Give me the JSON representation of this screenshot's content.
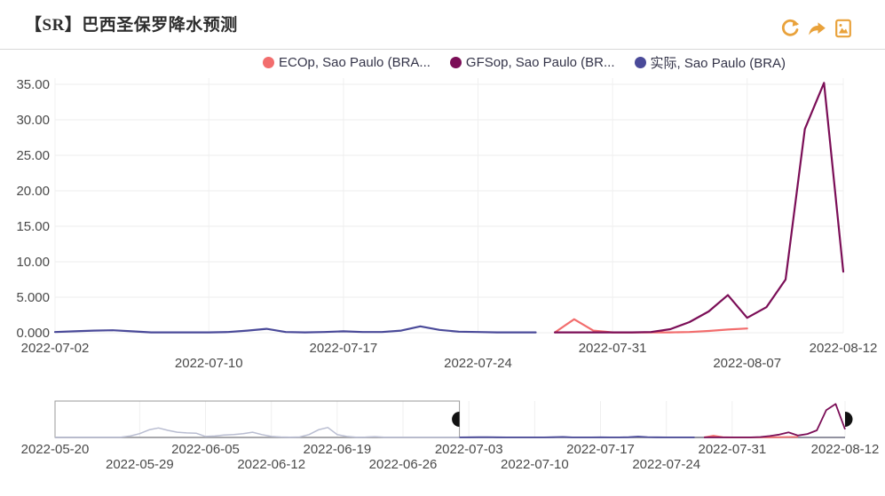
{
  "header": {
    "title": "【SR】巴西圣保罗降水预测",
    "actions": {
      "refresh_label": "refresh",
      "share_label": "share",
      "export_image_label": "export-image"
    },
    "accent_color": "#E9A23B"
  },
  "chart_data": {
    "type": "line",
    "title": "【SR】巴西圣保罗降水预测",
    "ylabel": "",
    "xlabel": "",
    "ylim": [
      0,
      35
    ],
    "y_tick_step": 5,
    "y_ticks": [
      "35.00",
      "30.00",
      "25.00",
      "20.00",
      "15.00",
      "10.00",
      "5.000",
      "0.000"
    ],
    "x_range": [
      "2022-07-02",
      "2022-08-12"
    ],
    "x_ticks": [
      "2022-07-02",
      "2022-07-10",
      "2022-07-17",
      "2022-07-24",
      "2022-07-31",
      "2022-08-07",
      "2022-08-12"
    ],
    "grid": true,
    "legend_position": "top",
    "series": [
      {
        "name": "ECOp, Sao Paulo (BRA...",
        "color": "#F26D6D",
        "start": "2022-07-28",
        "values": [
          0.05,
          1.9,
          0.3,
          0.05,
          0.05,
          0.05,
          0.05,
          0.1,
          0.25,
          0.45,
          0.6
        ]
      },
      {
        "name": "GFSop, Sao Paulo (BR...",
        "color": "#7B0E57",
        "start": "2022-07-28",
        "values": [
          0.05,
          0.05,
          0.05,
          0.05,
          0.05,
          0.1,
          0.5,
          1.5,
          3,
          5.3,
          2.1,
          3.6,
          7.5,
          28.7,
          35.2,
          8.6
        ]
      },
      {
        "name": "实际, Sao Paulo (BRA)",
        "color": "#4A4A99",
        "start": "2022-05-20",
        "values": [
          0.1,
          0.1,
          0.1,
          0.2,
          0.2,
          0.2,
          0.2,
          0.3,
          1.5,
          4,
          8,
          10,
          7.5,
          5.5,
          4.8,
          4.5,
          1,
          1.5,
          2.5,
          3,
          4,
          5.5,
          3,
          1,
          0.5,
          0.3,
          0.5,
          3,
          8,
          10.5,
          3,
          1,
          0.3,
          0.4,
          0.8,
          0.3,
          0.2,
          0.2,
          0.2,
          0.2,
          0.2,
          0.2,
          0.1,
          0.1,
          0.2,
          0.3,
          0.35,
          0.2,
          0.05,
          0.05,
          0.05,
          0.05,
          0.1,
          0.3,
          0.55,
          0.1,
          0.05,
          0.1,
          0.2,
          0.1,
          0.1,
          0.3,
          0.9,
          0.4,
          0.15,
          0.1,
          0.05,
          0.05,
          0.05
        ]
      }
    ],
    "navigator": {
      "x_range": [
        "2022-05-20",
        "2022-08-12"
      ],
      "selection_start": "2022-07-02",
      "selection_end": "2022-08-12",
      "x_ticks": [
        "2022-05-20",
        "2022-05-29",
        "2022-06-05",
        "2022-06-12",
        "2022-06-19",
        "2022-06-26",
        "2022-07-03",
        "2022-07-10",
        "2022-07-17",
        "2022-07-24",
        "2022-07-31",
        "2022-08-12"
      ],
      "dimmed_line_color": "#B9BDD1"
    }
  }
}
